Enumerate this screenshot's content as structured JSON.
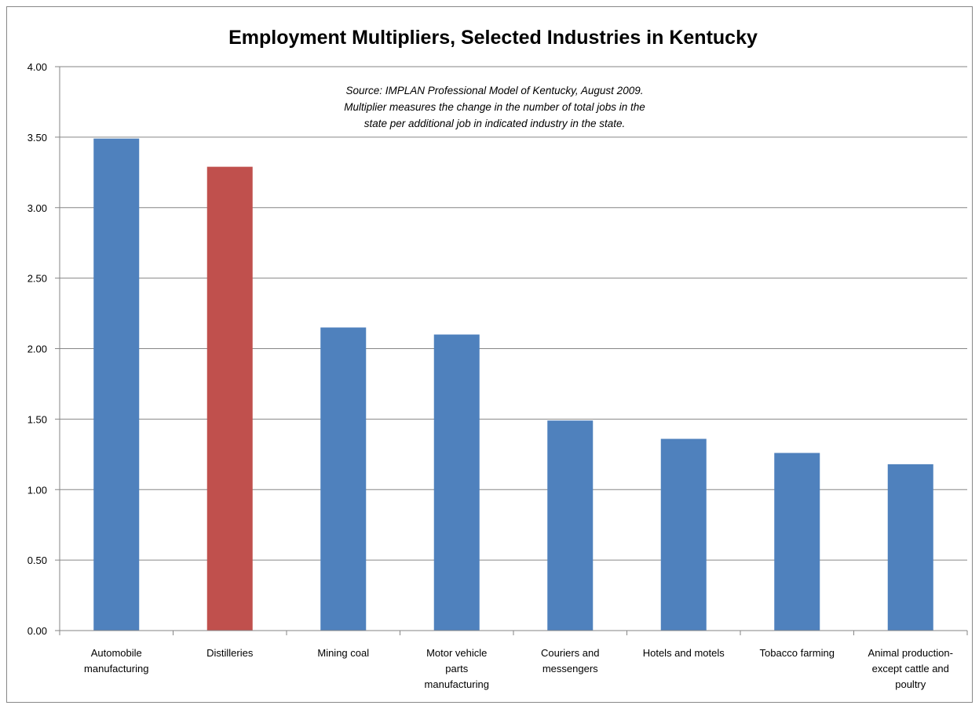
{
  "chart_data": {
    "type": "bar",
    "title": "Employment Multipliers, Selected Industries in Kentucky",
    "annotation": [
      "Source: IMPLAN Professional Model of Kentucky, August 2009.",
      "Multiplier measures the change in the number of total jobs in the",
      "state per additional job in indicated industry in the state."
    ],
    "categories": [
      [
        "Automobile",
        "manufacturing"
      ],
      [
        "Distilleries"
      ],
      [
        "Mining coal"
      ],
      [
        "Motor vehicle",
        "parts",
        "manufacturing"
      ],
      [
        "Couriers and",
        "messengers"
      ],
      [
        "Hotels and motels"
      ],
      [
        "Tobacco farming"
      ],
      [
        "Animal production-",
        "except cattle and",
        "poultry"
      ]
    ],
    "values": [
      3.49,
      3.29,
      2.15,
      2.1,
      1.49,
      1.36,
      1.26,
      1.18
    ],
    "bar_colors": [
      "#4F81BD",
      "#C0504D",
      "#4F81BD",
      "#4F81BD",
      "#4F81BD",
      "#4F81BD",
      "#4F81BD",
      "#4F81BD"
    ],
    "yticks": [
      "0.00",
      "0.50",
      "1.00",
      "1.50",
      "2.00",
      "2.50",
      "3.00",
      "3.50",
      "4.00"
    ],
    "ylim": [
      0,
      4
    ],
    "grid": true,
    "legend": false
  }
}
